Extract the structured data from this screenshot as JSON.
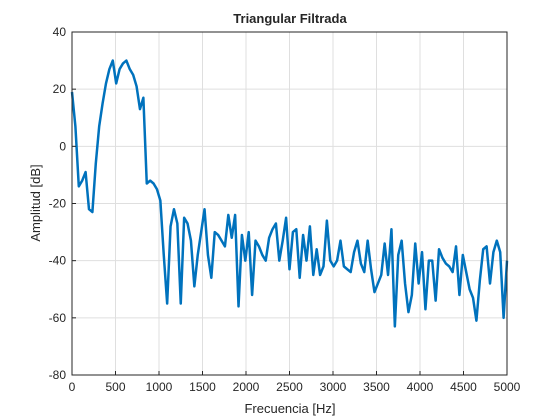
{
  "chart_data": {
    "type": "line",
    "title": "Triangular Filtrada",
    "xlabel": "Frecuencia [Hz]",
    "ylabel": "Amplitud [dB]",
    "x": [
      0,
      39.0625,
      78.125,
      117.1875,
      156.25,
      195.3125,
      234.375,
      273.4375,
      312.5,
      351.5625,
      390.625,
      429.6875,
      468.75,
      507.8125,
      546.875,
      585.9375,
      625,
      664.0625,
      703.125,
      742.1875,
      781.25,
      820.3125,
      859.375,
      898.4375,
      937.5,
      976.5625,
      1015.625,
      1054.6875,
      1093.75,
      1132.8125,
      1171.875,
      1210.9375,
      1250,
      1289.0625,
      1328.125,
      1367.1875,
      1406.25,
      1445.3125,
      1484.375,
      1523.4375,
      1562.5,
      1601.5625,
      1640.625,
      1679.6875,
      1718.75,
      1757.8125,
      1796.875,
      1835.9375,
      1875,
      1914.0625,
      1953.125,
      1992.1875,
      2031.25,
      2070.3125,
      2109.375,
      2148.4375,
      2187.5,
      2226.5625,
      2265.625,
      2304.6875,
      2343.75,
      2382.8125,
      2421.875,
      2460.9375,
      2500,
      2539.0625,
      2578.125,
      2617.1875,
      2656.25,
      2695.3125,
      2734.375,
      2773.4375,
      2812.5,
      2851.5625,
      2890.625,
      2929.6875,
      2968.75,
      3007.8125,
      3046.875,
      3085.9375,
      3125,
      3164.0625,
      3203.125,
      3242.1875,
      3281.25,
      3320.3125,
      3359.375,
      3398.4375,
      3437.5,
      3476.5625,
      3515.625,
      3554.6875,
      3593.75,
      3632.8125,
      3671.875,
      3710.9375,
      3750,
      3789.0625,
      3828.125,
      3867.1875,
      3906.25,
      3945.3125,
      3984.375,
      4023.4375,
      4062.5,
      4101.5625,
      4140.625,
      4179.6875,
      4218.75,
      4257.8125,
      4296.875,
      4335.9375,
      4375,
      4414.0625,
      4453.125,
      4492.1875,
      4531.25,
      4570.3125,
      4609.375,
      4648.4375,
      4687.5,
      4726.5625,
      4765.625,
      4804.6875,
      4843.75,
      4882.8125,
      4921.875,
      4960.9375,
      5000
    ],
    "series": [
      {
        "color": "#0072bd",
        "values": [
          19,
          7,
          -14,
          -12,
          -9,
          -22,
          -23,
          -6,
          7,
          15,
          22,
          27,
          30,
          22,
          27,
          29,
          30,
          27,
          25,
          21,
          13,
          17,
          -13,
          -12,
          -13,
          -15,
          -19,
          -38,
          -55,
          -28,
          -22,
          -27,
          -55,
          -25,
          -27,
          -33,
          -49,
          -38,
          -30,
          -22,
          -38,
          -46,
          -30,
          -31,
          -33,
          -35,
          -24,
          -32,
          -24,
          -56,
          -31,
          -40,
          -30,
          -52,
          -33,
          -35,
          -38,
          -40,
          -32,
          -29,
          -27,
          -40,
          -33,
          -25,
          -43,
          -30,
          -29,
          -46,
          -31,
          -40,
          -28,
          -45,
          -36,
          -45,
          -42,
          -26,
          -40,
          -42,
          -40,
          -33,
          -42,
          -43,
          -44,
          -37,
          -33,
          -41,
          -44,
          -33,
          -43,
          -51,
          -48,
          -45,
          -34,
          -45,
          -29,
          -63,
          -38,
          -33,
          -48,
          -58,
          -52,
          -34,
          -48,
          -37,
          -57,
          -40,
          -40,
          -54,
          -36,
          -39,
          -41,
          -42,
          -44,
          -35,
          -52,
          -38,
          -44,
          -50,
          -53,
          -61,
          -47,
          -36,
          -35,
          -48,
          -37,
          -33,
          -37,
          -60,
          -40
        ]
      }
    ],
    "xlim": [
      0,
      5000
    ],
    "ylim": [
      -80,
      40
    ],
    "xticks": [
      0,
      500,
      1000,
      1500,
      2000,
      2500,
      3000,
      3500,
      4000,
      4500,
      5000
    ],
    "yticks": [
      -80,
      -60,
      -40,
      -20,
      0,
      20,
      40
    ],
    "grid": true
  }
}
